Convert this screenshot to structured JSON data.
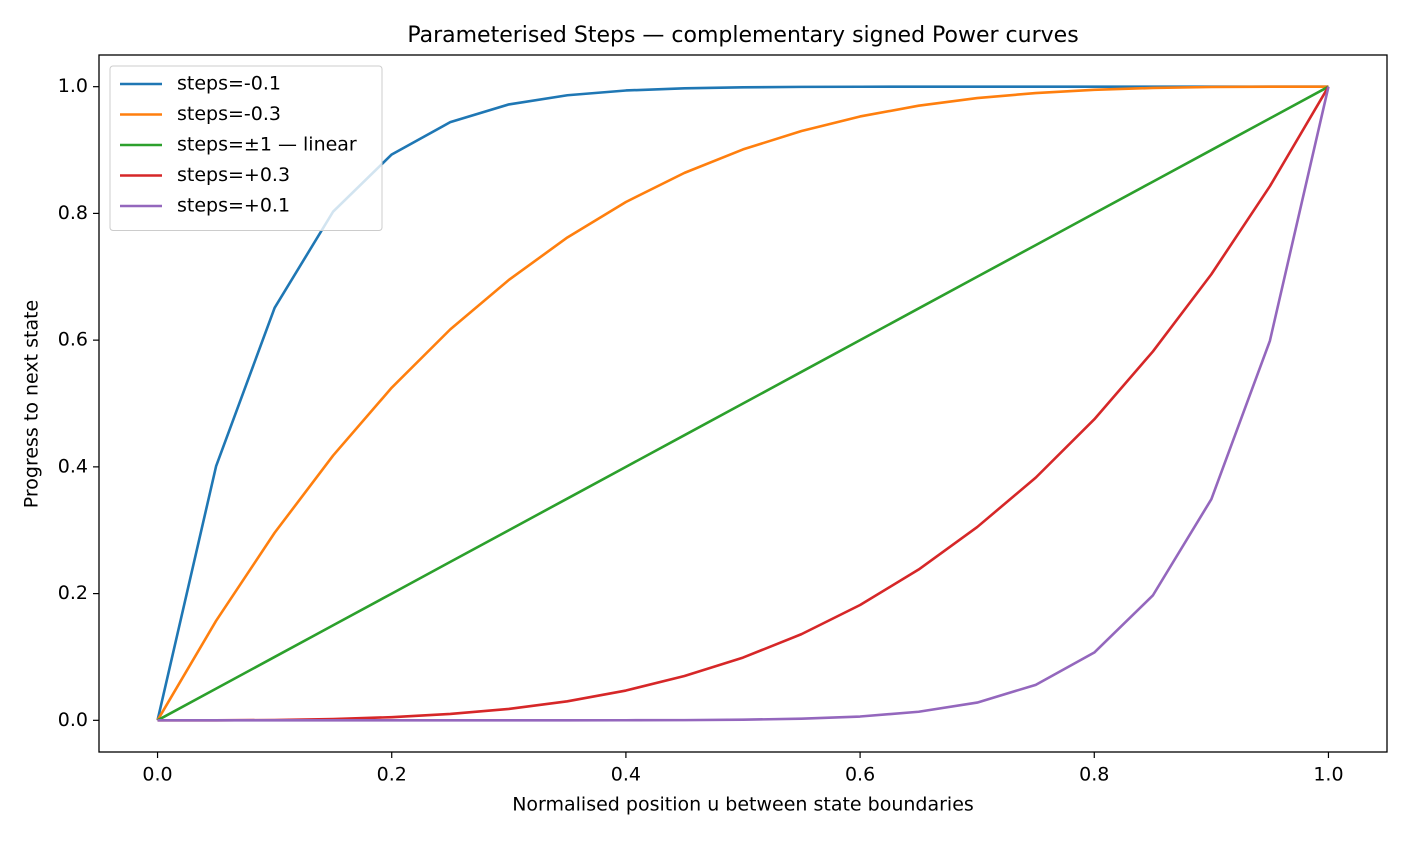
{
  "chart_data": {
    "type": "line",
    "title": "Parameterised Steps — complementary signed Power curves",
    "x_label": "Normalised position u between state boundaries",
    "y_label": "Progress to next state",
    "x": [
      0,
      0.05,
      0.1,
      0.15,
      0.2,
      0.25,
      0.3,
      0.35,
      0.4,
      0.45,
      0.5,
      0.55,
      0.6,
      0.65,
      0.7,
      0.75,
      0.8,
      0.85,
      0.9,
      0.95,
      1
    ],
    "series": [
      {
        "name": "steps=-0.1",
        "color": "#1f77b4",
        "values": [
          0,
          0.401,
          0.651,
          0.803,
          0.893,
          0.944,
          0.972,
          0.9865,
          0.994,
          0.9975,
          0.999,
          0.9997,
          0.9999,
          1,
          1,
          1,
          1,
          1,
          1,
          1,
          1
        ]
      },
      {
        "name": "steps=-0.3",
        "color": "#ff7f0e",
        "values": [
          0,
          0.157,
          0.296,
          0.418,
          0.525,
          0.617,
          0.695,
          0.762,
          0.818,
          0.864,
          0.901,
          0.93,
          0.953,
          0.97,
          0.982,
          0.99,
          0.995,
          0.998,
          0.9995,
          1,
          1
        ]
      },
      {
        "name": "steps=±1 — linear",
        "color": "#2ca02c",
        "values": [
          0,
          0.05,
          0.1,
          0.15,
          0.2,
          0.25,
          0.3,
          0.35,
          0.4,
          0.45,
          0.5,
          0.55,
          0.6,
          0.65,
          0.7,
          0.75,
          0.8,
          0.85,
          0.9,
          0.95,
          1
        ]
      },
      {
        "name": "steps=+0.3",
        "color": "#d62728",
        "values": [
          0,
          0,
          0.0005,
          0.002,
          0.005,
          0.01,
          0.018,
          0.03,
          0.047,
          0.07,
          0.099,
          0.136,
          0.182,
          0.238,
          0.305,
          0.383,
          0.475,
          0.582,
          0.704,
          0.843,
          1
        ]
      },
      {
        "name": "steps=+0.1",
        "color": "#9467bd",
        "values": [
          0,
          0,
          0,
          0,
          0,
          0,
          0,
          0,
          0.0001,
          0.0003,
          0.001,
          0.0025,
          0.006,
          0.0135,
          0.028,
          0.056,
          0.107,
          0.197,
          0.349,
          0.599,
          1
        ]
      }
    ],
    "xlim": [
      -0.05,
      1.05
    ],
    "ylim": [
      -0.05,
      1.05
    ],
    "xticks": [
      {
        "value": 0,
        "label": "0.0"
      },
      {
        "value": 0.2,
        "label": "0.2"
      },
      {
        "value": 0.4,
        "label": "0.4"
      },
      {
        "value": 0.6,
        "label": "0.6"
      },
      {
        "value": 0.8,
        "label": "0.8"
      },
      {
        "value": 1,
        "label": "1.0"
      }
    ],
    "yticks": [
      {
        "value": 0,
        "label": "0.0"
      },
      {
        "value": 0.2,
        "label": "0.2"
      },
      {
        "value": 0.4,
        "label": "0.4"
      },
      {
        "value": 0.6,
        "label": "0.6"
      },
      {
        "value": 0.8,
        "label": "0.8"
      },
      {
        "value": 1,
        "label": "1.0"
      }
    ],
    "grid": false,
    "legend": "upper-left"
  }
}
